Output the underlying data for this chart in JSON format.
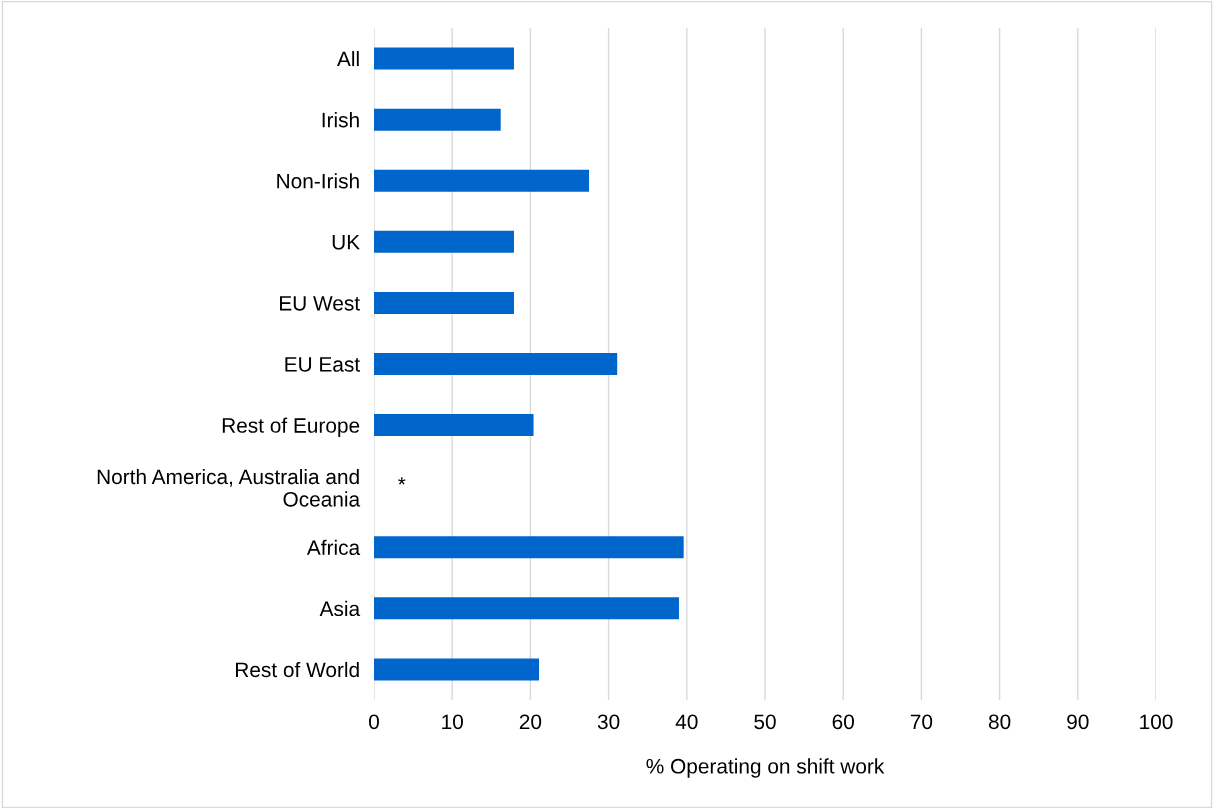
{
  "chart_data": {
    "type": "bar",
    "orientation": "horizontal",
    "xlabel": "% Operating on shift work",
    "categories": [
      "All",
      "Irish",
      "Non-Irish",
      "UK",
      "EU West",
      "EU East",
      "Rest of Europe",
      "North America, Australia and\nOceania",
      "Africa",
      "Asia",
      "Rest of World"
    ],
    "values": [
      17.9,
      16.2,
      27.5,
      17.9,
      17.9,
      31.1,
      20.4,
      null,
      39.6,
      39.0,
      21.1
    ],
    "color": "#0066cc",
    "xlim": [
      0,
      100
    ],
    "xticks": [
      0,
      10,
      20,
      30,
      40,
      50,
      60,
      70,
      80,
      90,
      100
    ],
    "grid": "x",
    "legend": false,
    "annotations": [
      "*"
    ]
  }
}
